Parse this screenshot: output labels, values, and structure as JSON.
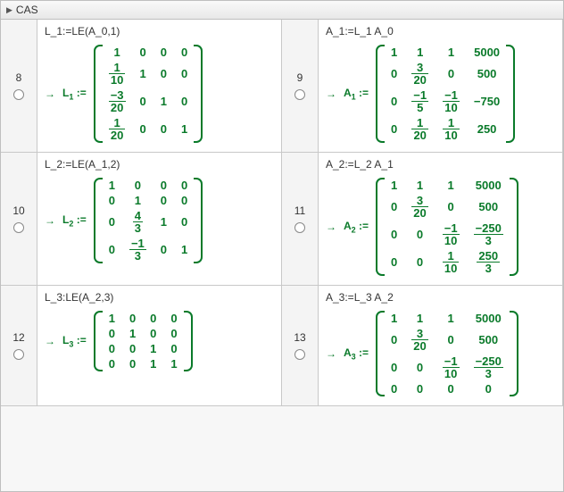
{
  "header": {
    "title": "CAS"
  },
  "style": {
    "mathColor": "#0a7a2a"
  },
  "cells": [
    {
      "num": "8",
      "input": "L_1:=LE(A_0,1)",
      "lhsBase": "L",
      "lhsSub": "1",
      "matrix": [
        [
          "1",
          "0",
          "0",
          "0"
        ],
        [
          {
            "n": "1",
            "d": "10"
          },
          "1",
          "0",
          "0"
        ],
        [
          {
            "n": "−3",
            "d": "20"
          },
          "0",
          "1",
          "0"
        ],
        [
          {
            "n": "1",
            "d": "20"
          },
          "0",
          "0",
          "1"
        ]
      ]
    },
    {
      "num": "9",
      "input": "A_1:=L_1 A_0",
      "lhsBase": "A",
      "lhsSub": "1",
      "matrix": [
        [
          "1",
          "1",
          "1",
          "5000"
        ],
        [
          "0",
          {
            "n": "3",
            "d": "20"
          },
          "0",
          "500"
        ],
        [
          "0",
          {
            "n": "−1",
            "d": "5"
          },
          {
            "n": "−1",
            "d": "10"
          },
          "−750"
        ],
        [
          "0",
          {
            "n": "1",
            "d": "20"
          },
          {
            "n": "1",
            "d": "10"
          },
          "250"
        ]
      ]
    },
    {
      "num": "10",
      "input": "L_2:=LE(A_1,2)",
      "lhsBase": "L",
      "lhsSub": "2",
      "matrix": [
        [
          "1",
          "0",
          "0",
          "0"
        ],
        [
          "0",
          "1",
          "0",
          "0"
        ],
        [
          "0",
          {
            "n": "4",
            "d": "3"
          },
          "1",
          "0"
        ],
        [
          "0",
          {
            "n": "−1",
            "d": "3"
          },
          "0",
          "1"
        ]
      ]
    },
    {
      "num": "11",
      "input": "A_2:=L_2 A_1",
      "lhsBase": "A",
      "lhsSub": "2",
      "matrix": [
        [
          "1",
          "1",
          "1",
          "5000"
        ],
        [
          "0",
          {
            "n": "3",
            "d": "20"
          },
          "0",
          "500"
        ],
        [
          "0",
          "0",
          {
            "n": "−1",
            "d": "10"
          },
          {
            "n": "−250",
            "d": "3"
          }
        ],
        [
          "0",
          "0",
          {
            "n": "1",
            "d": "10"
          },
          {
            "n": "250",
            "d": "3"
          }
        ]
      ]
    },
    {
      "num": "12",
      "input": "L_3:LE(A_2,3)",
      "lhsBase": "L",
      "lhsSub": "3",
      "matrix": [
        [
          "1",
          "0",
          "0",
          "0"
        ],
        [
          "0",
          "1",
          "0",
          "0"
        ],
        [
          "0",
          "0",
          "1",
          "0"
        ],
        [
          "0",
          "0",
          "1",
          "1"
        ]
      ]
    },
    {
      "num": "13",
      "input": "A_3:=L_3 A_2",
      "lhsBase": "A",
      "lhsSub": "3",
      "matrix": [
        [
          "1",
          "1",
          "1",
          "5000"
        ],
        [
          "0",
          {
            "n": "3",
            "d": "20"
          },
          "0",
          "500"
        ],
        [
          "0",
          "0",
          {
            "n": "−1",
            "d": "10"
          },
          {
            "n": "−250",
            "d": "3"
          }
        ],
        [
          "0",
          "0",
          "0",
          "0"
        ]
      ]
    }
  ]
}
